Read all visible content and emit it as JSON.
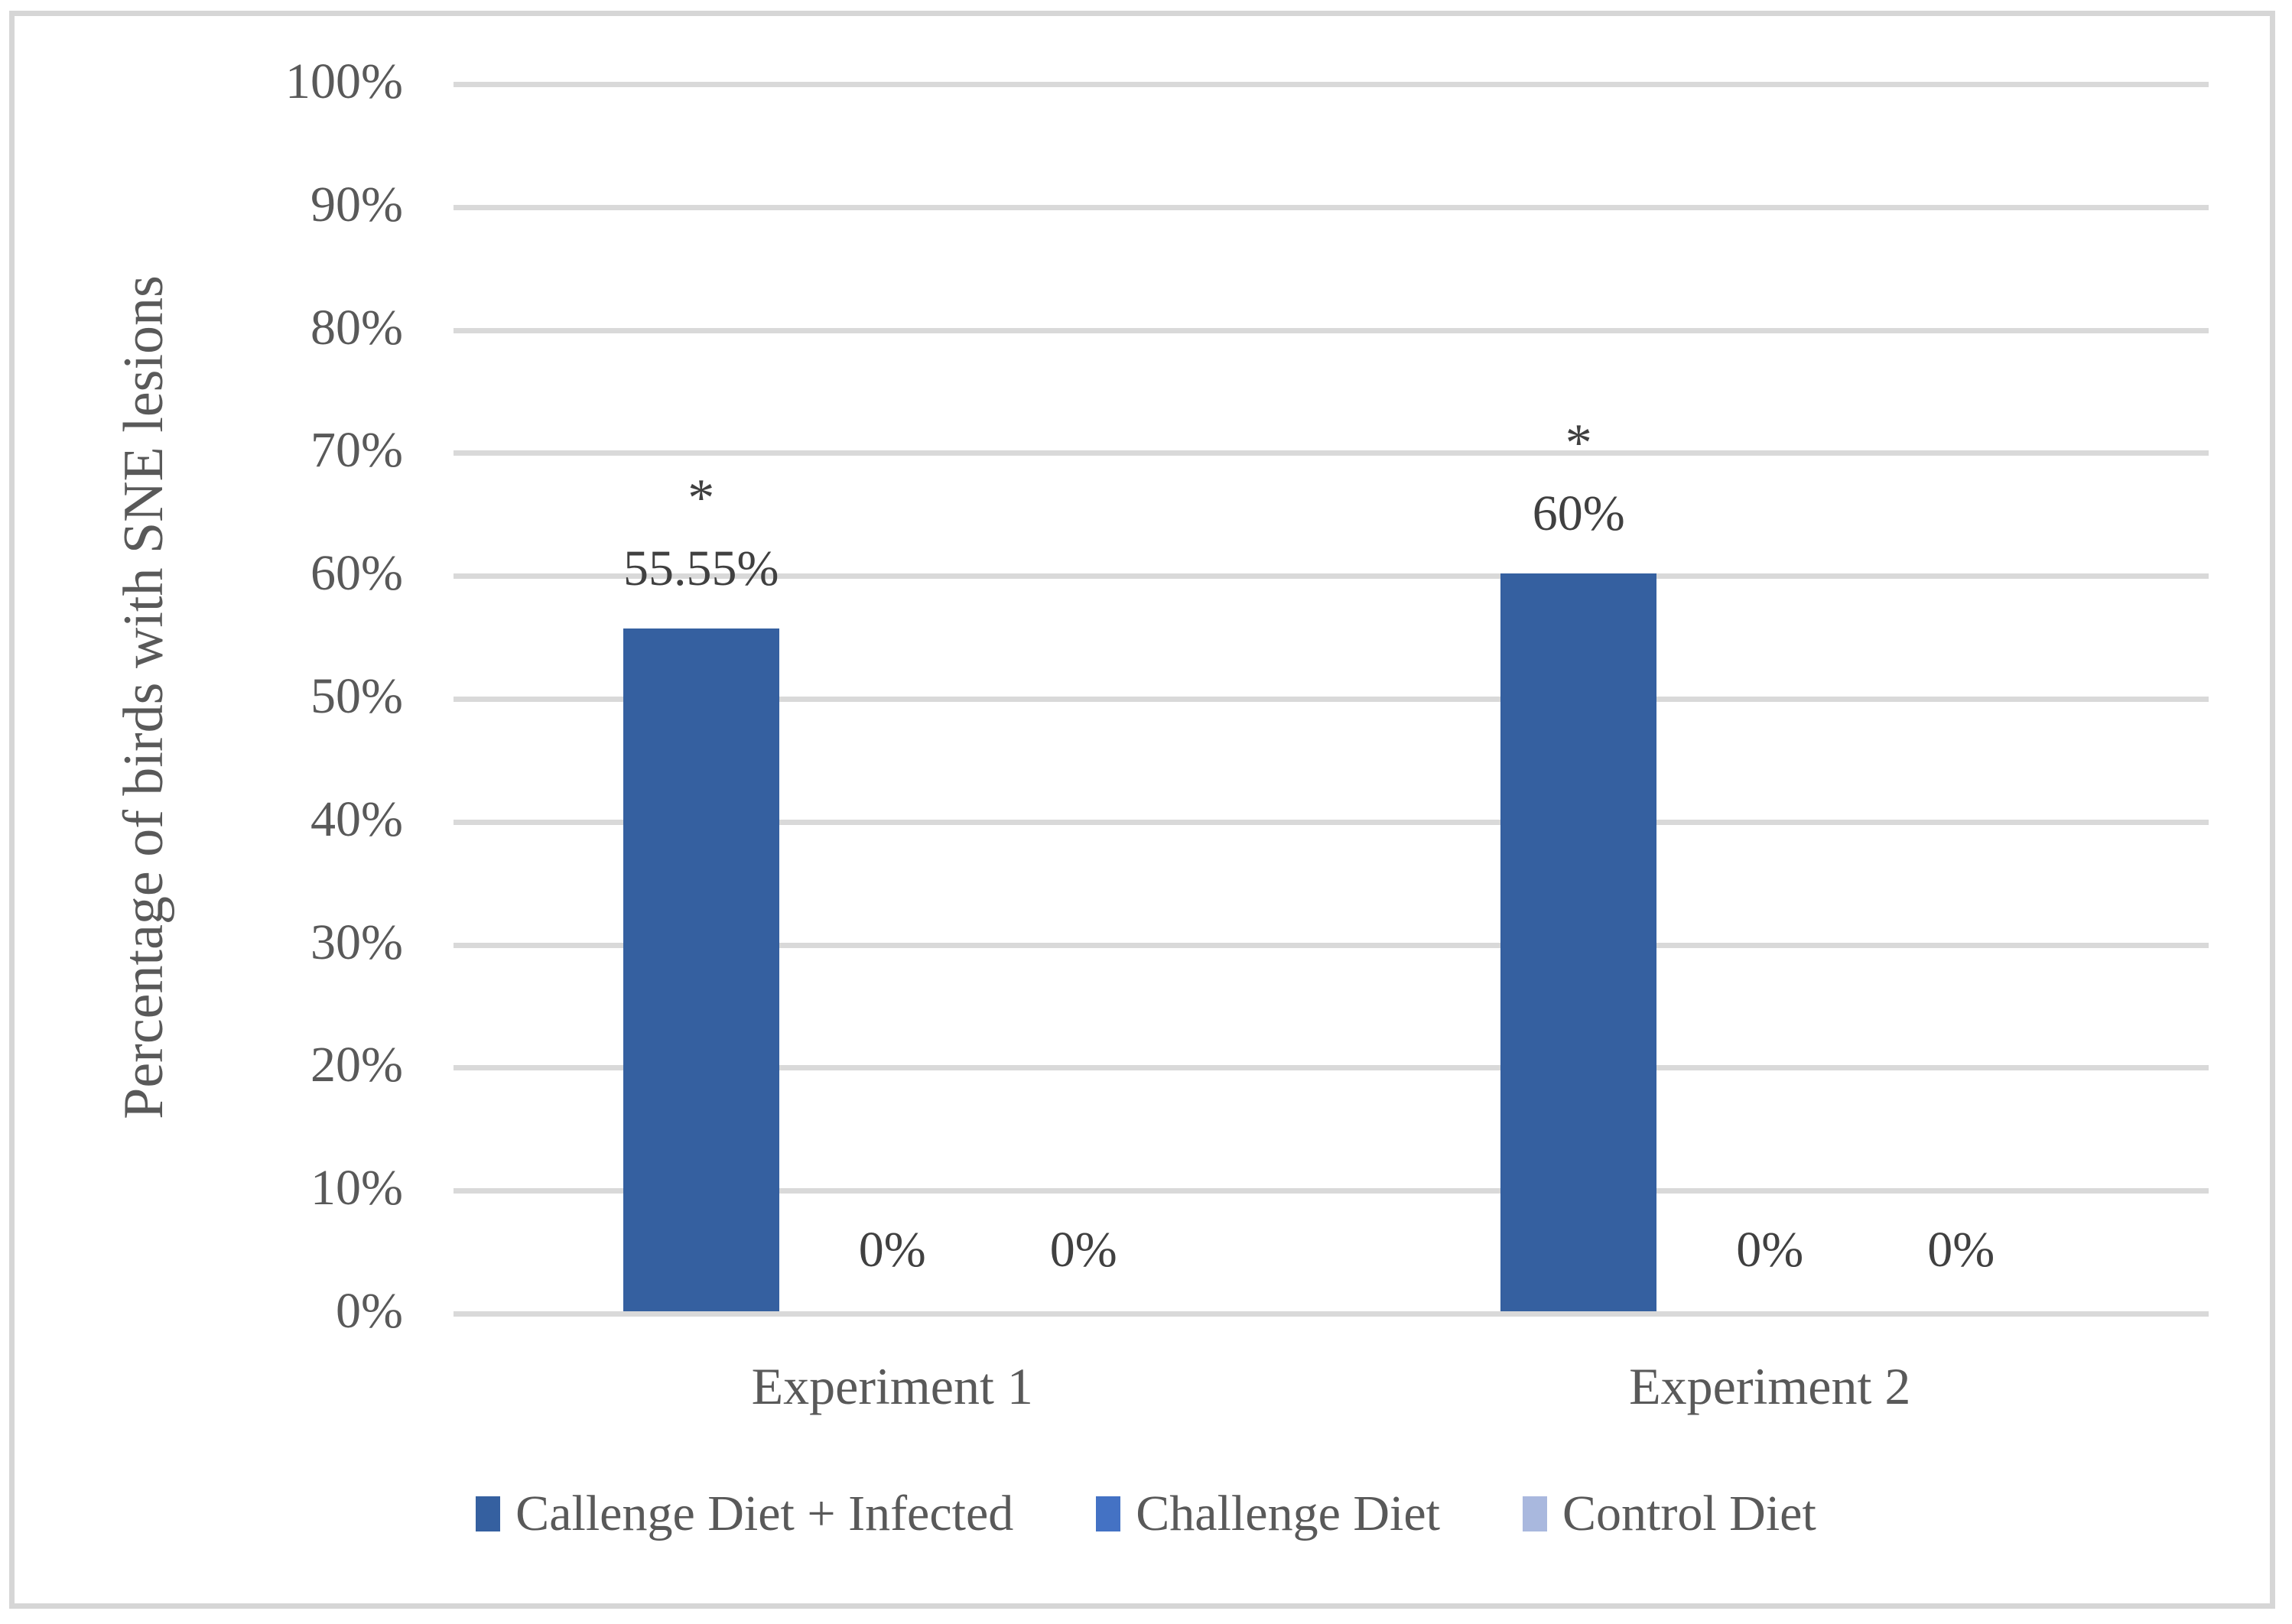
{
  "colors": {
    "gridline": "#D9D9D9",
    "axis_line": "#D9D9D9",
    "figure_border": "#D6D6D6",
    "axis_text": "#595959",
    "data_label_text": "#404040",
    "background": "#FFFFFF"
  },
  "chart_data": {
    "type": "bar",
    "title": "",
    "subtitle": "",
    "xlabel": "",
    "ylabel": "Percentage of birds with SNE lesions",
    "categories": [
      "Experiment 1",
      "Experiment 2"
    ],
    "series": [
      {
        "name": "Callenge Diet + Infected",
        "color": "#3560A0",
        "values": [
          55.55,
          60
        ],
        "data_labels": [
          "55.55%",
          "60%"
        ],
        "annotations": [
          "*",
          "*"
        ]
      },
      {
        "name": "Challenge Diet",
        "color": "#4472C4",
        "values": [
          0,
          0
        ],
        "data_labels": [
          "0%",
          "0%"
        ],
        "annotations": [
          "",
          ""
        ]
      },
      {
        "name": "Control Diet",
        "color": "#A9B8DE",
        "values": [
          0,
          0
        ],
        "data_labels": [
          "0%",
          "0%"
        ],
        "annotations": [
          "",
          ""
        ]
      }
    ],
    "ylim": [
      0,
      100
    ],
    "y_ticks": [
      {
        "value": 100,
        "label": "100%"
      },
      {
        "value": 90,
        "label": "90%"
      },
      {
        "value": 80,
        "label": "80%"
      },
      {
        "value": 70,
        "label": "70%"
      },
      {
        "value": 60,
        "label": "60%"
      },
      {
        "value": 50,
        "label": "50%"
      },
      {
        "value": 40,
        "label": "40%"
      },
      {
        "value": 30,
        "label": "30%"
      },
      {
        "value": 20,
        "label": "20%"
      },
      {
        "value": 10,
        "label": "10%"
      },
      {
        "value": 0,
        "label": "0%"
      }
    ],
    "grid": true,
    "legend_position": "bottom"
  }
}
